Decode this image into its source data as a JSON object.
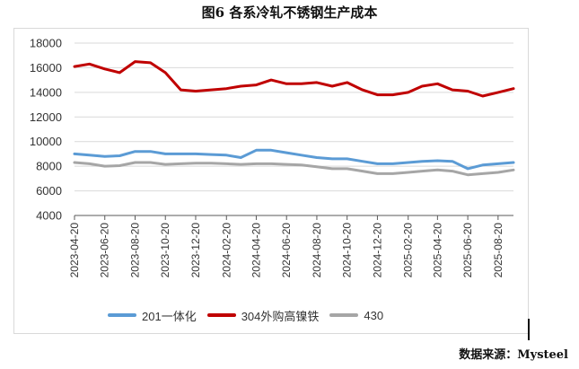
{
  "figure": {
    "title": "图6 各系冷轧不锈钢生产成本",
    "source": "数据来源：Mysteel"
  },
  "chart_data": {
    "type": "line",
    "ylim": [
      4000,
      18000
    ],
    "yticks": [
      "18000",
      "16000",
      "14000",
      "12000",
      "10000",
      "8000",
      "6000",
      "4000"
    ],
    "ytick_values": [
      18000,
      16000,
      14000,
      12000,
      10000,
      8000,
      6000,
      4000
    ],
    "xtick_labels": [
      "2023-04-20",
      "2023-06-20",
      "2023-08-20",
      "2023-10-20",
      "2023-12-20",
      "2024-02-20",
      "2024-04-20",
      "2024-06-20",
      "2024-08-20",
      "2024-10-20",
      "2024-12-20",
      "2025-02-20",
      "2025-04-20",
      "2025-06-20",
      "2025-08-20"
    ],
    "x": [
      "2023-04-20",
      "2023-05-20",
      "2023-06-20",
      "2023-07-20",
      "2023-08-20",
      "2023-09-20",
      "2023-10-20",
      "2023-11-20",
      "2023-12-20",
      "2024-01-20",
      "2024-02-20",
      "2024-03-20",
      "2024-04-20",
      "2024-05-20",
      "2024-06-20",
      "2024-07-20",
      "2024-08-20",
      "2024-09-20",
      "2024-10-20",
      "2024-11-20",
      "2024-12-20",
      "2025-01-20",
      "2025-02-20",
      "2025-03-20",
      "2025-04-20",
      "2025-05-20",
      "2025-06-20",
      "2025-07-20",
      "2025-08-20",
      "2025-09-20"
    ],
    "grid": "horizontal",
    "legend": "bottom",
    "series": [
      {
        "name": "201一体化",
        "color": "#5b9bd5",
        "values": [
          9000,
          8900,
          8800,
          8850,
          9200,
          9200,
          9000,
          9000,
          9000,
          8950,
          8900,
          8700,
          9300,
          9300,
          9100,
          8900,
          8700,
          8600,
          8600,
          8400,
          8200,
          8200,
          8300,
          8400,
          8450,
          8400,
          7800,
          8100,
          8200,
          8300
        ]
      },
      {
        "name": "304外购高镍铁",
        "color": "#c00000",
        "values": [
          16100,
          16300,
          15900,
          15600,
          16500,
          16400,
          15600,
          14200,
          14100,
          14200,
          14300,
          14500,
          14600,
          15000,
          14700,
          14700,
          14800,
          14500,
          14800,
          14200,
          13800,
          13800,
          14000,
          14500,
          14700,
          14200,
          14100,
          13700,
          14000,
          14300
        ]
      },
      {
        "name": "430",
        "color": "#a6a6a6",
        "values": [
          8300,
          8200,
          8000,
          8050,
          8300,
          8300,
          8150,
          8200,
          8250,
          8250,
          8200,
          8150,
          8200,
          8200,
          8150,
          8100,
          7950,
          7800,
          7800,
          7600,
          7400,
          7400,
          7500,
          7600,
          7700,
          7600,
          7300,
          7400,
          7500,
          7700
        ]
      }
    ]
  }
}
